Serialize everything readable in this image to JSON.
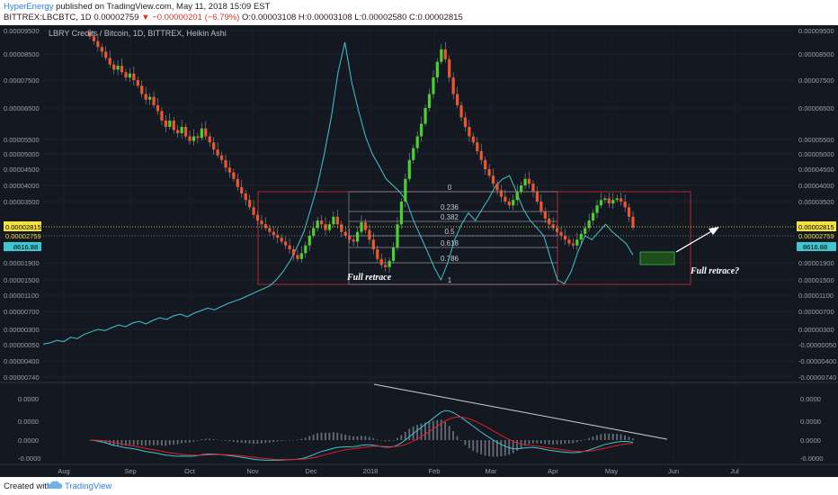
{
  "header": {
    "author": "HyperEnergy",
    "published": "published on TradingView.com, May 11, 2018 15:09 EST",
    "symbol": "BITTREX:LBCBTC, 1D",
    "price": "0.00002759",
    "change": "−0.00000201 (−6.79%)",
    "open": "O:0.00003108",
    "high": "H:0.00003108",
    "low": "L:0.00002580",
    "close": "C:0.00002815"
  },
  "footer": {
    "created_with": "Created with",
    "brand": "TradingView"
  },
  "colors": {
    "background": "#141821",
    "up_candle": "#4bd12f",
    "down_candle": "#f2552a",
    "comparison_line": "#3fc6cf",
    "box": "#b02a2a",
    "price_line": "#d8c228",
    "macd": "#3fc6cf",
    "signal": "#e0202a",
    "histogram": "#666c76",
    "target_box": "#1e4d1c"
  },
  "chart_data": {
    "type": "candlestick",
    "title": "LBRY Credits / Bitcoin, 1D, BITTREX, Heikin Ashi",
    "y_axis_labels": [
      "0.00009500",
      "0.00008500",
      "0.00007500",
      "0.00006500",
      "0.00005500",
      "0.00005000",
      "0.00004500",
      "0.00004000",
      "0.00003500",
      "0.00002815",
      "0.00002759",
      "0.00001900",
      "0.00001500",
      "0.00001100",
      "0.00000700",
      "0.00000300",
      "0.00000050",
      "0.00000400",
      "0.00000740"
    ],
    "y_axis_labels_right": [
      "0.00009500",
      "0.00008500",
      "0.00007500",
      "0.00006500",
      "0.00005500",
      "0.00005000",
      "0.00004500",
      "0.00004000",
      "0.00003500",
      "0.00002815",
      "0.00002759",
      "0.00001900",
      "0.00001500",
      "0.00001100",
      "0.00000700",
      "0.00000300",
      "-0.00000050",
      "-0.00000400",
      "-0.00000740"
    ],
    "last_close_label": "0.00002815",
    "last_price_label": "0.00002759",
    "comparison_label": "8616.88",
    "x_axis_labels": [
      "Aug",
      "Sep",
      "Oct",
      "Nov",
      "Dec",
      "2018",
      "Feb",
      "Mar",
      "Apr",
      "May",
      "Jun",
      "Jul"
    ],
    "fib_levels": [
      "0",
      "0.236",
      "0.382",
      "0.5",
      "0.618",
      "0.786",
      "1"
    ],
    "annotations": [
      "Full retrace",
      "Full retrace?"
    ],
    "macd_axis_labels": [
      "0.0000",
      "0.0000",
      "0.0000",
      "-0.0000"
    ],
    "macd_axis_labels_right": [
      "0.0000",
      "0.0000",
      "0.0000",
      "-0.0000"
    ],
    "candles_close": [
      9.25e-05,
      9.05e-05,
      8.8e-05,
      8.6e-05,
      8.35e-05,
      8.1e-05,
      7.9e-05,
      8.05e-05,
      7.8e-05,
      7.6e-05,
      7.75e-05,
      7.5e-05,
      7.3e-05,
      7e-05,
      6.8e-05,
      6.9e-05,
      6.6e-05,
      6.4e-05,
      6.1e-05,
      5.9e-05,
      6.1e-05,
      5.8e-05,
      5.7e-05,
      5.9e-05,
      5.6e-05,
      5.45e-05,
      5.6e-05,
      5.55e-05,
      5.85e-05,
      5.6e-05,
      5.4e-05,
      5.15e-05,
      4.95e-05,
      4.8e-05,
      4.55e-05,
      4.4e-05,
      4.2e-05,
      3.95e-05,
      3.75e-05,
      3.55e-05,
      3.35e-05,
      3.15e-05,
      3e-05,
      2.9e-05,
      2.8e-05,
      2.7e-05,
      2.62e-05,
      2.55e-05,
      2.45e-05,
      2.35e-05,
      2.25e-05,
      2.1e-05,
      2e-05,
      2.15e-05,
      2.35e-05,
      2.6e-05,
      2.8e-05,
      3e-05,
      2.9e-05,
      2.75e-05,
      2.9e-05,
      3.1e-05,
      2.9e-05,
      2.7e-05,
      2.6e-05,
      2.5e-05,
      2.45e-05,
      2.7e-05,
      2.95e-05,
      2.75e-05,
      2.5e-05,
      2.25e-05,
      2e-05,
      1.85e-05,
      1.8e-05,
      1.95e-05,
      2.3e-05,
      2.9e-05,
      3.5e-05,
      4.2e-05,
      4.8e-05,
      5.2e-05,
      5.6e-05,
      6e-05,
      6.5e-05,
      7e-05,
      7.6e-05,
      8.2e-05,
      8.7e-05,
      8.3e-05,
      7.6e-05,
      7e-05,
      6.6e-05,
      6.2e-05,
      5.9e-05,
      5.6e-05,
      5.4e-05,
      5.1e-05,
      4.8e-05,
      4.5e-05,
      4.3e-05,
      4.05e-05,
      3.85e-05,
      3.65e-05,
      3.5e-05,
      3.4e-05,
      3.55e-05,
      3.8e-05,
      4e-05,
      4.2e-05,
      4.05e-05,
      3.8e-05,
      3.5e-05,
      3.25e-05,
      3.05e-05,
      2.9e-05,
      2.8e-05,
      2.7e-05,
      2.6e-05,
      2.5e-05,
      2.4e-05,
      2.35e-05,
      2.5e-05,
      2.65e-05,
      2.8e-05,
      3e-05,
      3.2e-05,
      3.4e-05,
      3.55e-05,
      3.6e-05,
      3.45e-05,
      3.55e-05,
      3.6e-05,
      3.5e-05,
      3.35e-05,
      3.1e-05,
      2.81e-05
    ],
    "comparison_series": [
      6e-07,
      8e-07,
      1.2e-06,
      1e-06,
      1.7e-06,
      1.5e-06,
      2.2e-06,
      2.6e-06,
      3e-06,
      2.8e-06,
      3.4e-06,
      4e-06,
      3.6e-06,
      4.4e-06,
      4.8e-06,
      4.2e-06,
      5e-06,
      5.6e-06,
      5.2e-06,
      6e-06,
      6.4e-06,
      5.8e-06,
      6.6e-06,
      7.2e-06,
      7.8e-06,
      7.4e-06,
      8.2e-06,
      9e-06,
      9.6e-06,
      1.02e-05,
      1.1e-05,
      1.18e-05,
      1.26e-05,
      1.34e-05,
      1.5e-05,
      1.7e-05,
      1.95e-05,
      2.3e-05,
      2.7e-05,
      3.3e-05,
      4e-05,
      5e-05,
      6.2e-05,
      7.8e-05,
      9e-05,
      7.4e-05,
      6.4e-05,
      5.6e-05,
      5e-05,
      4.6e-05,
      4.2e-05,
      4e-05,
      3.8e-05,
      3.5e-05,
      3e-05,
      2.6e-05,
      2.2e-05,
      1.8e-05,
      1.5e-05,
      1.9e-05,
      2.5e-05,
      2.9e-05,
      3.2e-05,
      3e-05,
      3.3e-05,
      3.6e-05,
      4e-05,
      4.2e-05,
      4.3e-05,
      3.8e-05,
      3.3e-05,
      3e-05,
      2.8e-05,
      2.6e-05,
      2e-05,
      1.5e-05,
      1.4e-05,
      1.7e-05,
      2.2e-05,
      2.6e-05,
      2.5e-05,
      2.7e-05,
      2.9e-05,
      2.7e-05,
      2.55e-05,
      2.4e-05,
      2.1e-05
    ]
  }
}
